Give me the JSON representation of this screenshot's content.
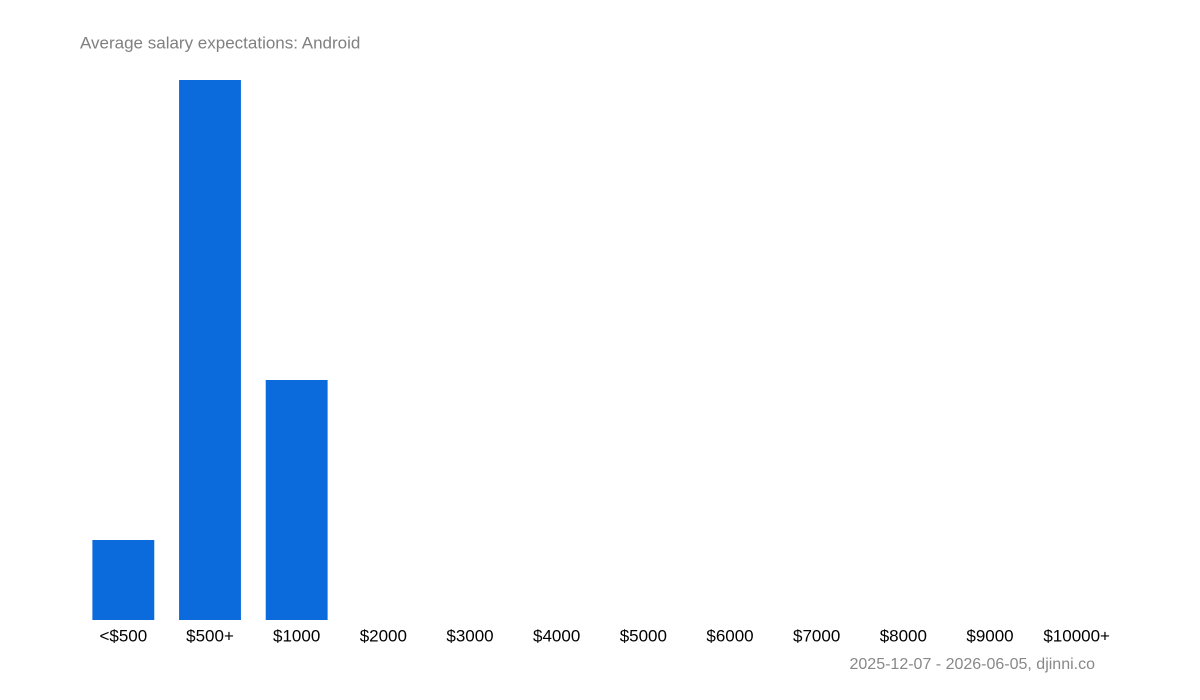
{
  "chart_data": {
    "type": "bar",
    "title": "Average salary expectations:  Android",
    "footnote": "2025-12-07 - 2026-06-05, djinni.co",
    "categories": [
      "<$500",
      "$500+",
      "$1000",
      "$2000",
      "$3000",
      "$4000",
      "$5000",
      "$6000",
      "$7000",
      "$8000",
      "$9000",
      "$10000+"
    ],
    "values": [
      4,
      27,
      12,
      0,
      0,
      0,
      0,
      0,
      0,
      0,
      0,
      0
    ],
    "color": "#0b6bdc",
    "ylim": [
      0,
      27
    ]
  }
}
